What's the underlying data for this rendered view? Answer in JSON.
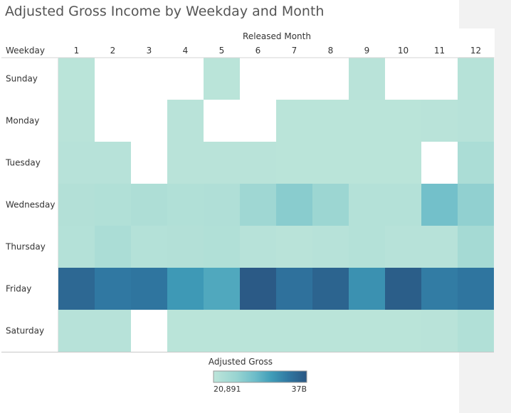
{
  "chart_data": {
    "type": "heatmap",
    "title": "Adjusted Gross Income by Weekday and Month",
    "column_field": "Released Month",
    "row_field": "Weekday",
    "columns": [
      "1",
      "2",
      "3",
      "4",
      "5",
      "6",
      "7",
      "8",
      "9",
      "10",
      "11",
      "12"
    ],
    "rows": [
      "Sunday",
      "Monday",
      "Tuesday",
      "Wednesday",
      "Thursday",
      "Friday",
      "Saturday"
    ],
    "color_legend": {
      "title": "Adjusted Gross",
      "min_label": "20,891",
      "max_label": "37B",
      "min_color": "#bde5da",
      "max_color": "#2a5783"
    },
    "intensity_note": "Relative color intensity 0 (min) to 1 (max); null = no data",
    "values": [
      [
        0.02,
        null,
        null,
        null,
        0.02,
        null,
        null,
        null,
        0.03,
        null,
        null,
        0.05
      ],
      [
        0.03,
        null,
        null,
        0.03,
        null,
        null,
        0.02,
        0.02,
        0.02,
        0.02,
        0.03,
        0.04
      ],
      [
        0.04,
        0.04,
        null,
        0.03,
        0.03,
        0.03,
        0.02,
        0.02,
        0.02,
        0.02,
        null,
        0.12
      ],
      [
        0.07,
        0.08,
        0.1,
        0.08,
        0.09,
        0.2,
        0.32,
        0.22,
        0.06,
        0.06,
        0.42,
        0.28
      ],
      [
        0.06,
        0.12,
        0.06,
        0.07,
        0.08,
        0.04,
        0.03,
        0.04,
        0.06,
        0.04,
        0.04,
        0.16
      ],
      [
        0.9,
        0.8,
        0.82,
        0.64,
        0.56,
        0.98,
        0.84,
        0.92,
        0.68,
        0.96,
        0.78,
        0.82
      ],
      [
        0.04,
        0.04,
        null,
        0.02,
        0.02,
        0.02,
        0.02,
        0.02,
        0.02,
        0.02,
        0.03,
        0.08
      ]
    ]
  }
}
